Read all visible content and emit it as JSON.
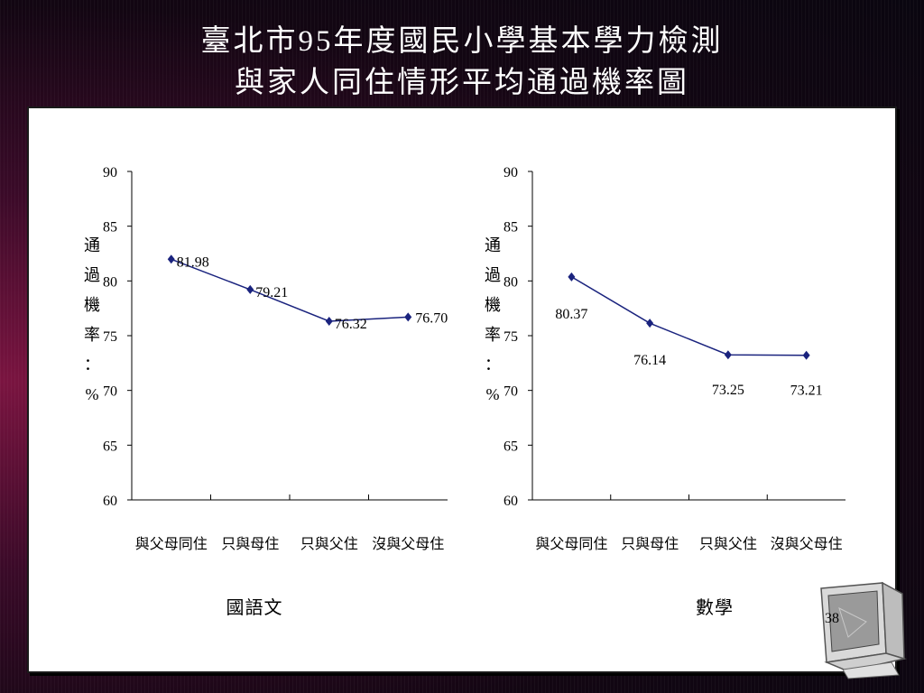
{
  "slide": {
    "title_line1": "臺北市95年度國民小學基本學力檢測",
    "title_line2": "與家人同住情形平均通過機率圖",
    "page_number": "38",
    "colors": {
      "line": "#1a237e",
      "marker": "#1a237e",
      "panel": "#ffffff"
    },
    "icon": "computer-monitor-icon"
  },
  "chart_data": [
    {
      "type": "line",
      "subtitle": "國語文",
      "ylabel": "通過機率：%",
      "ylim": [
        60,
        90
      ],
      "yticks": [
        60,
        65,
        70,
        75,
        80,
        85,
        90
      ],
      "categories": [
        "與父母同住",
        "只與母住",
        "只與父住",
        "沒與父母住"
      ],
      "values": [
        81.98,
        79.21,
        76.32,
        76.7
      ],
      "value_labels": [
        "81.98",
        "79.21",
        "76.32",
        "76.70"
      ]
    },
    {
      "type": "line",
      "subtitle": "數學",
      "ylabel": "通過機率：%",
      "ylim": [
        60,
        90
      ],
      "yticks": [
        60,
        65,
        70,
        75,
        80,
        85,
        90
      ],
      "categories": [
        "與父母同住",
        "只與母住",
        "只與父住",
        "沒與父母住"
      ],
      "values": [
        80.37,
        76.14,
        73.25,
        73.21
      ],
      "value_labels": [
        "80.37",
        "76.14",
        "73.25",
        "73.21"
      ]
    }
  ]
}
